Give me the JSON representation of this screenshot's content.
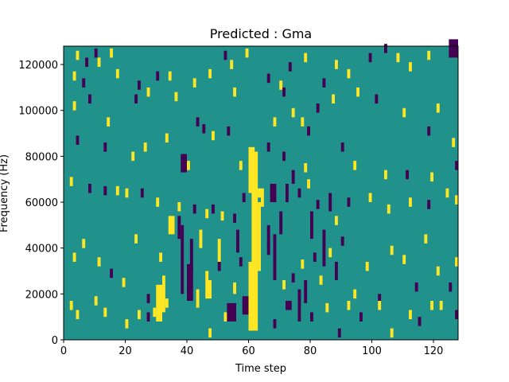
{
  "chart_data": {
    "type": "heatmap",
    "title": "Predicted : Gma",
    "xlabel": "Time step",
    "ylabel": "Frequency (Hz)",
    "xlim": [
      0,
      128
    ],
    "ylim": [
      0,
      128000
    ],
    "x_ticks": [
      0,
      20,
      40,
      60,
      80,
      100,
      120
    ],
    "y_ticks": [
      0,
      20000,
      40000,
      60000,
      80000,
      100000,
      120000
    ],
    "x_tick_labels": [
      "0",
      "20",
      "40",
      "60",
      "80",
      "100",
      "120"
    ],
    "y_tick_labels": [
      "0",
      "20000",
      "40000",
      "60000",
      "80000",
      "100000",
      "120000"
    ],
    "grid": false,
    "legend": "none",
    "value_levels": [
      -1,
      0,
      1
    ],
    "colors": {
      "low": "#440154",
      "mid": "#21918c",
      "high": "#fde725"
    },
    "background_value": 0,
    "cells": [
      [
        4,
        122000,
        1,
        4000,
        1
      ],
      [
        7,
        119000,
        -1,
        4000,
        1
      ],
      [
        10,
        123000,
        -1,
        4000,
        1
      ],
      [
        11,
        119000,
        1,
        4000,
        1
      ],
      [
        15,
        123000,
        1,
        4000,
        1
      ],
      [
        17,
        114000,
        1,
        4000,
        1
      ],
      [
        3,
        113000,
        1,
        4000,
        1
      ],
      [
        6,
        110000,
        -1,
        4000,
        1
      ],
      [
        24,
        109000,
        -1,
        4000,
        1
      ],
      [
        30,
        113000,
        -1,
        4000,
        1
      ],
      [
        34,
        113000,
        1,
        4000,
        1
      ],
      [
        42,
        110000,
        1,
        4000,
        1
      ],
      [
        47,
        114000,
        1,
        4000,
        1
      ],
      [
        52,
        122000,
        -1,
        4000,
        1
      ],
      [
        54,
        118000,
        1,
        4000,
        1
      ],
      [
        59,
        123000,
        1,
        4000,
        1
      ],
      [
        66,
        112000,
        -1,
        4000,
        1
      ],
      [
        70,
        109000,
        1,
        4000,
        1
      ],
      [
        73,
        117000,
        -1,
        4000,
        1
      ],
      [
        78,
        121000,
        1,
        4000,
        1
      ],
      [
        84,
        110000,
        -1,
        4000,
        1
      ],
      [
        88,
        118000,
        1,
        4000,
        1
      ],
      [
        92,
        114000,
        1,
        4000,
        1
      ],
      [
        99,
        121000,
        -1,
        4000,
        1
      ],
      [
        104,
        125000,
        -1,
        4000,
        1
      ],
      [
        108,
        121000,
        1,
        4000,
        1
      ],
      [
        112,
        117000,
        1,
        4000,
        1
      ],
      [
        118,
        122000,
        1,
        4000,
        1
      ],
      [
        125,
        123000,
        -1,
        8000,
        3
      ],
      [
        3,
        100000,
        1,
        4000,
        1
      ],
      [
        8,
        103000,
        -1,
        4000,
        1
      ],
      [
        14,
        93000,
        1,
        4000,
        1
      ],
      [
        23,
        103000,
        -1,
        4000,
        1
      ],
      [
        27,
        106000,
        1,
        4000,
        1
      ],
      [
        36,
        104000,
        1,
        4000,
        1
      ],
      [
        43,
        93000,
        -1,
        4000,
        1
      ],
      [
        45,
        90000,
        -1,
        4000,
        1
      ],
      [
        48,
        87000,
        1,
        4000,
        1
      ],
      [
        53,
        89000,
        -1,
        4000,
        1
      ],
      [
        55,
        106000,
        1,
        4000,
        1
      ],
      [
        68,
        93000,
        1,
        4000,
        1
      ],
      [
        71,
        106000,
        -1,
        4000,
        1
      ],
      [
        74,
        97000,
        1,
        4000,
        1
      ],
      [
        77,
        93000,
        1,
        4000,
        1
      ],
      [
        79,
        89000,
        -1,
        4000,
        1
      ],
      [
        82,
        99000,
        -1,
        4000,
        1
      ],
      [
        87,
        103000,
        1,
        4000,
        1
      ],
      [
        95,
        106000,
        1,
        4000,
        1
      ],
      [
        101,
        103000,
        -1,
        4000,
        1
      ],
      [
        110,
        97000,
        1,
        4000,
        1
      ],
      [
        118,
        89000,
        -1,
        4000,
        1
      ],
      [
        121,
        99000,
        1,
        4000,
        1
      ],
      [
        126,
        84000,
        1,
        4000,
        1
      ],
      [
        4,
        85000,
        -1,
        4000,
        1
      ],
      [
        13,
        82000,
        -1,
        4000,
        1
      ],
      [
        22,
        78000,
        1,
        4000,
        1
      ],
      [
        26,
        82000,
        1,
        4000,
        1
      ],
      [
        33,
        86000,
        1,
        4000,
        1
      ],
      [
        38,
        73000,
        -1,
        8000,
        2
      ],
      [
        40,
        74000,
        1,
        4000,
        1
      ],
      [
        57,
        74000,
        1,
        4000,
        1
      ],
      [
        66,
        82000,
        -1,
        4000,
        1
      ],
      [
        71,
        78000,
        -1,
        4000,
        1
      ],
      [
        78,
        73000,
        1,
        4000,
        1
      ],
      [
        90,
        82000,
        -1,
        4000,
        1
      ],
      [
        94,
        74000,
        1,
        4000,
        1
      ],
      [
        104,
        70000,
        1,
        4000,
        1
      ],
      [
        111,
        70000,
        -1,
        4000,
        1
      ],
      [
        119,
        69000,
        1,
        4000,
        1
      ],
      [
        127,
        74000,
        -1,
        4000,
        1
      ],
      [
        2,
        67000,
        1,
        4000,
        1
      ],
      [
        8,
        64000,
        -1,
        4000,
        1
      ],
      [
        13,
        63000,
        -1,
        4000,
        1
      ],
      [
        17,
        63000,
        1,
        4000,
        1
      ],
      [
        20,
        62000,
        1,
        4000,
        1
      ],
      [
        25,
        62000,
        -1,
        4000,
        1
      ],
      [
        30,
        58000,
        1,
        4000,
        1
      ],
      [
        34,
        46000,
        1,
        8000,
        2
      ],
      [
        37,
        56000,
        1,
        4000,
        1
      ],
      [
        42,
        55000,
        -1,
        4000,
        1
      ],
      [
        46,
        53000,
        1,
        4000,
        1
      ],
      [
        48,
        55000,
        -1,
        4000,
        1
      ],
      [
        51,
        52000,
        1,
        4000,
        1
      ],
      [
        55,
        51000,
        -1,
        4000,
        1
      ],
      [
        58,
        60000,
        -1,
        4000,
        1
      ],
      [
        63,
        62000,
        1,
        4000,
        1
      ],
      [
        76,
        62000,
        -1,
        4000,
        1
      ],
      [
        79,
        66000,
        1,
        4000,
        1
      ],
      [
        82,
        57000,
        -1,
        4000,
        1
      ],
      [
        88,
        50000,
        1,
        4000,
        1
      ],
      [
        92,
        58000,
        -1,
        4000,
        1
      ],
      [
        99,
        60000,
        1,
        4000,
        1
      ],
      [
        105,
        55000,
        1,
        4000,
        1
      ],
      [
        112,
        58000,
        1,
        4000,
        1
      ],
      [
        118,
        57000,
        -1,
        4000,
        1
      ],
      [
        124,
        62000,
        1,
        4000,
        1
      ],
      [
        127,
        59000,
        1,
        4000,
        1
      ],
      [
        3,
        34000,
        1,
        4000,
        1
      ],
      [
        6,
        40000,
        1,
        4000,
        1
      ],
      [
        11,
        32000,
        1,
        4000,
        1
      ],
      [
        15,
        27000,
        -1,
        4000,
        1
      ],
      [
        19,
        23000,
        1,
        4000,
        1
      ],
      [
        23,
        42000,
        1,
        4000,
        1
      ],
      [
        27,
        16000,
        -1,
        4000,
        1
      ],
      [
        31,
        34000,
        1,
        4000,
        1
      ],
      [
        33,
        14000,
        1,
        4000,
        1
      ],
      [
        46,
        26000,
        1,
        4000,
        1
      ],
      [
        50,
        30000,
        -1,
        4000,
        1
      ],
      [
        55,
        21000,
        1,
        4000,
        1
      ],
      [
        57,
        32000,
        -1,
        4000,
        1
      ],
      [
        66,
        37000,
        -1,
        4000,
        1
      ],
      [
        71,
        22000,
        1,
        4000,
        1
      ],
      [
        74,
        25000,
        -1,
        4000,
        1
      ],
      [
        77,
        31000,
        1,
        4000,
        1
      ],
      [
        81,
        34000,
        -1,
        4000,
        1
      ],
      [
        83,
        24000,
        1,
        4000,
        1
      ],
      [
        86,
        36000,
        1,
        4000,
        1
      ],
      [
        90,
        41000,
        -1,
        4000,
        1
      ],
      [
        94,
        18000,
        1,
        4000,
        1
      ],
      [
        98,
        30000,
        1,
        4000,
        1
      ],
      [
        102,
        16000,
        -1,
        4000,
        1
      ],
      [
        106,
        37000,
        1,
        4000,
        1
      ],
      [
        110,
        33000,
        1,
        4000,
        1
      ],
      [
        114,
        21000,
        -1,
        4000,
        1
      ],
      [
        117,
        42000,
        1,
        4000,
        1
      ],
      [
        121,
        28000,
        1,
        4000,
        1
      ],
      [
        125,
        21000,
        -1,
        4000,
        1
      ],
      [
        127,
        32000,
        1,
        4000,
        1
      ],
      [
        2,
        13000,
        1,
        4000,
        1
      ],
      [
        4,
        9000,
        1,
        4000,
        1
      ],
      [
        10,
        15000,
        1,
        4000,
        1
      ],
      [
        13,
        10000,
        1,
        4000,
        1
      ],
      [
        20,
        5000,
        1,
        4000,
        1
      ],
      [
        24,
        9000,
        1,
        4000,
        1
      ],
      [
        27,
        8000,
        -1,
        4000,
        1
      ],
      [
        29,
        10000,
        1,
        4000,
        1
      ],
      [
        47,
        1000,
        1,
        4000,
        1
      ],
      [
        52,
        8000,
        1,
        4000,
        1
      ],
      [
        55,
        9000,
        -1,
        4000,
        1
      ],
      [
        68,
        5000,
        -1,
        4000,
        1
      ],
      [
        72,
        13000,
        -1,
        4000,
        2
      ],
      [
        76,
        10000,
        1,
        4000,
        1
      ],
      [
        80,
        8000,
        -1,
        4000,
        1
      ],
      [
        85,
        12000,
        1,
        4000,
        1
      ],
      [
        89,
        1000,
        -1,
        4000,
        1
      ],
      [
        92,
        13000,
        1,
        4000,
        1
      ],
      [
        96,
        8000,
        -1,
        4000,
        1
      ],
      [
        102,
        13000,
        1,
        4000,
        1
      ],
      [
        106,
        1000,
        1,
        4000,
        1
      ],
      [
        112,
        9000,
        1,
        4000,
        1
      ],
      [
        115,
        6000,
        -1,
        4000,
        1
      ],
      [
        119,
        13000,
        1,
        4000,
        1
      ],
      [
        122,
        13000,
        1,
        4000,
        1
      ],
      [
        127,
        9000,
        -1,
        4000,
        1
      ],
      [
        30,
        8000,
        1,
        16000,
        2
      ],
      [
        32,
        12000,
        1,
        16000,
        1
      ],
      [
        40,
        17000,
        -1,
        16000,
        2
      ],
      [
        43,
        14000,
        1,
        8000,
        1
      ],
      [
        46,
        18000,
        1,
        8000,
        2
      ],
      [
        53,
        8000,
        -1,
        8000,
        3
      ],
      [
        55,
        20000,
        1,
        4000,
        1
      ],
      [
        58,
        11000,
        -1,
        8000,
        2
      ],
      [
        60,
        4000,
        1,
        30000,
        3
      ],
      [
        61,
        34000,
        1,
        48000,
        2
      ],
      [
        63,
        30000,
        1,
        30000,
        1
      ],
      [
        60,
        64000,
        1,
        20000,
        2
      ],
      [
        62,
        50000,
        1,
        10000,
        1
      ],
      [
        64,
        58000,
        1,
        8000,
        1
      ],
      [
        66,
        40000,
        -1,
        10000,
        1
      ],
      [
        67,
        60000,
        -1,
        8000,
        2
      ],
      [
        68,
        26000,
        -1,
        20000,
        1
      ],
      [
        70,
        46000,
        -1,
        10000,
        1
      ],
      [
        72,
        60000,
        -1,
        8000,
        1
      ],
      [
        74,
        68000,
        -1,
        6000,
        1
      ],
      [
        76,
        8000,
        -1,
        14000,
        1
      ],
      [
        78,
        16000,
        -1,
        10000,
        1
      ],
      [
        80,
        44000,
        -1,
        12000,
        1
      ],
      [
        84,
        32000,
        -1,
        16000,
        1
      ],
      [
        38,
        20000,
        -1,
        30000,
        1
      ],
      [
        41,
        30000,
        -1,
        14000,
        1
      ],
      [
        37,
        44000,
        -1,
        10000,
        1
      ],
      [
        44,
        40000,
        1,
        8000,
        1
      ],
      [
        50,
        34000,
        1,
        10000,
        1
      ],
      [
        56,
        38000,
        -1,
        10000,
        1
      ],
      [
        86,
        56000,
        -1,
        8000,
        1
      ],
      [
        88,
        26000,
        -1,
        8000,
        1
      ]
    ]
  }
}
